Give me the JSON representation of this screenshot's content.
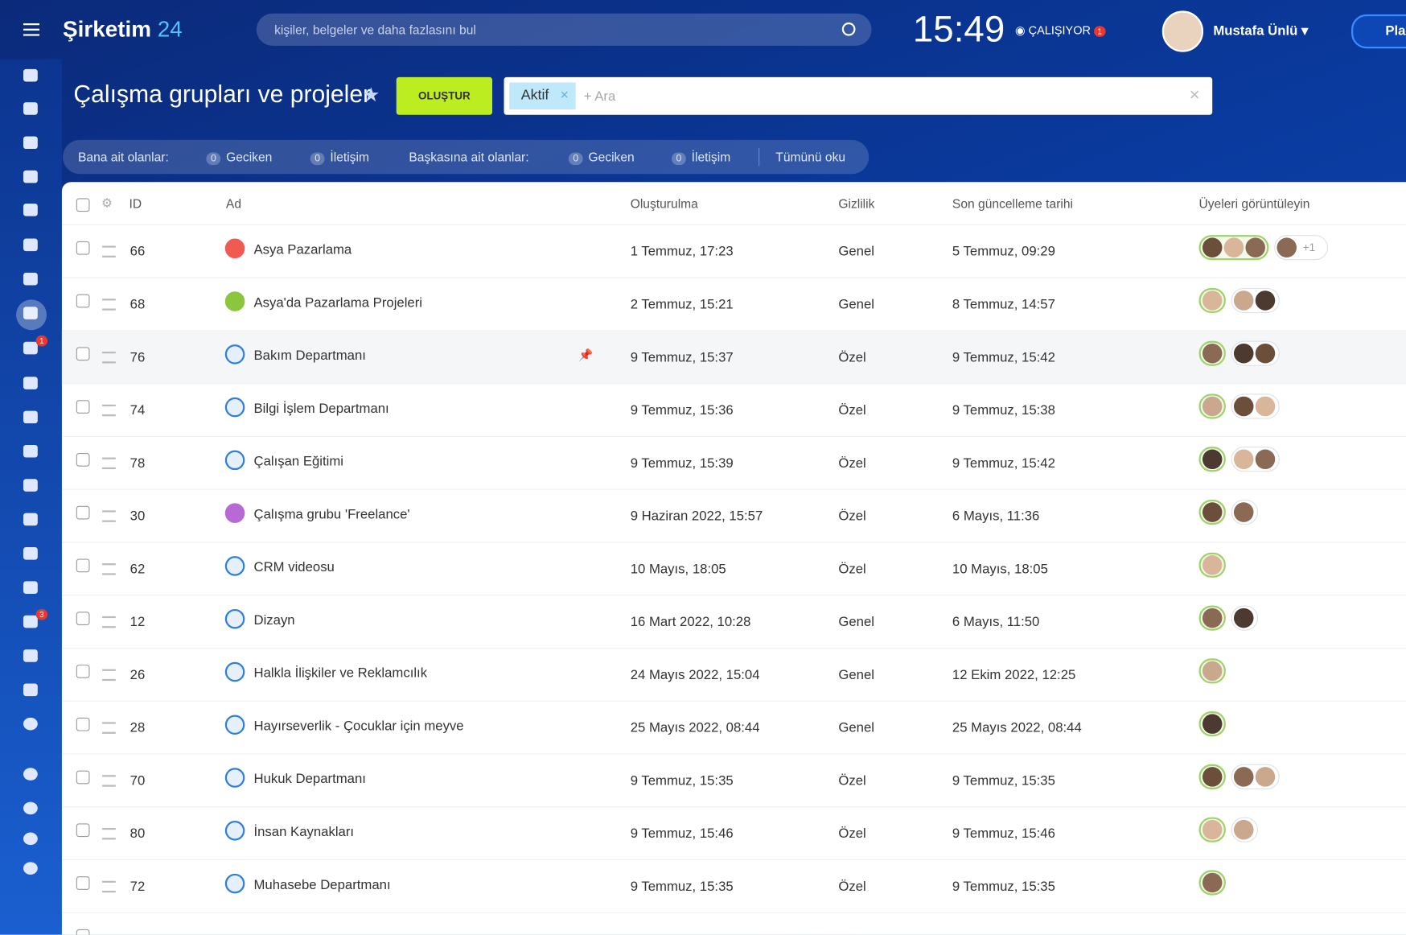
{
  "header": {
    "logo": "Şirketim",
    "logo_num": "24",
    "search": "kişiler, belgeler ve daha fazlasını bul",
    "time": "15:49",
    "status": "ÇALIŞIYOR",
    "status_badge": "1",
    "user": "Mustafa Ünlü",
    "button": "Pla"
  },
  "nav_badges": [
    "1",
    "3"
  ],
  "page": {
    "title": "Çalışma grupları ve projeler",
    "create": "OLUŞTUR",
    "filter_tag": "Aktif",
    "filter_search": "+ Ara"
  },
  "counters": {
    "mine": "Bana ait olanlar:",
    "others": "Başkasına ait olanlar:",
    "items": [
      {
        "count": "0",
        "label": "Geciken"
      },
      {
        "count": "0",
        "label": "İletişim"
      },
      {
        "count": "0",
        "label": "Geciken"
      },
      {
        "count": "0",
        "label": "İletişim"
      }
    ],
    "read_all": "Tümünü oku"
  },
  "table": {
    "columns": [
      "ID",
      "Ad",
      "Oluşturulma",
      "Gizlilik",
      "Son güncelleme tarihi",
      "Üyeleri görüntüleyin"
    ],
    "rows": [
      [
        "66",
        "Asya Pazarlama",
        "1 Temmuz, 17:23",
        "Genel",
        "5 Temmuz, 09:29"
      ],
      [
        "68",
        "Asya'da Pazarlama Projeleri",
        "2 Temmuz, 15:21",
        "Genel",
        "8 Temmuz, 14:57"
      ],
      [
        "76",
        "Bakım Departmanı",
        "9 Temmuz, 15:37",
        "Özel",
        "9 Temmuz, 15:42"
      ],
      [
        "74",
        "Bilgi İşlem Departmanı",
        "9 Temmuz, 15:36",
        "Özel",
        "9 Temmuz, 15:38"
      ],
      [
        "78",
        "Çalışan Eğitimi",
        "9 Temmuz, 15:39",
        "Özel",
        "9 Temmuz, 15:42"
      ],
      [
        "30",
        "Çalışma grubu 'Freelance'",
        "9 Haziran 2022, 15:57",
        "Özel",
        "6 Mayıs, 11:36"
      ],
      [
        "62",
        "CRM videosu",
        "10 Mayıs, 18:05",
        "Özel",
        "10 Mayıs, 18:05"
      ],
      [
        "12",
        "Dizayn",
        "16 Mart 2022, 10:28",
        "Genel",
        "6 Mayıs, 11:50"
      ],
      [
        "26",
        "Halkla İlişkiler ve Reklamcılık",
        "24 Mayıs 2022, 15:04",
        "Genel",
        "12 Ekim 2022, 12:25"
      ],
      [
        "28",
        "Hayırseverlik - Çocuklar için meyve",
        "25 Mayıs 2022, 08:44",
        "Genel",
        "25 Mayıs 2022, 08:44"
      ],
      [
        "70",
        "Hukuk Departmanı",
        "9 Temmuz, 15:35",
        "Özel",
        "9 Temmuz, 15:35"
      ],
      [
        "80",
        "İnsan Kaynakları",
        "9 Temmuz, 15:46",
        "Özel",
        "9 Temmuz, 15:46"
      ],
      [
        "72",
        "Muhasebe Departmanı",
        "9 Temmuz, 15:35",
        "Özel",
        "9 Temmuz, 15:35"
      ]
    ],
    "extra_members": "+1"
  }
}
